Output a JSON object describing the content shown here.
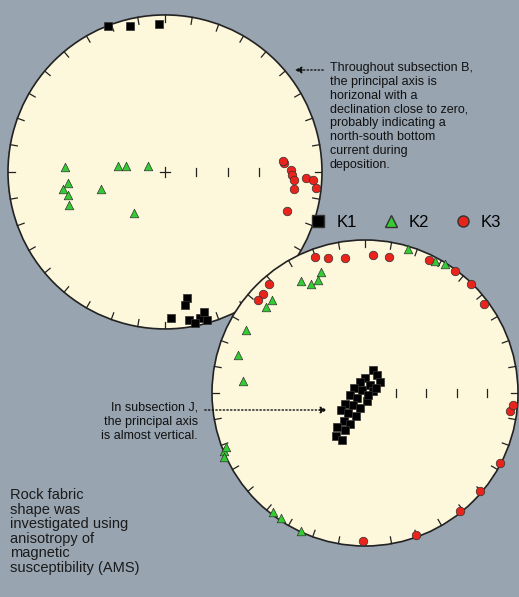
{
  "chart_data": [
    {
      "type": "scatter",
      "annotation": "Throughout subsection B,\nthe principal axis is\nhorizonal with a\ndeclination close to zero,\nprobably indicating a\nnorth-south bottom\ncurrent during\ndeposition.",
      "xlim": [
        -1,
        1
      ],
      "ylim": [
        -1,
        1
      ],
      "tick_labels": false,
      "legend": "center right",
      "series": [
        {
          "name": "K1",
          "color": "#000000",
          "marker": "square",
          "x": [
            -0.36,
            -0.22,
            -0.04,
            0.14,
            0.04,
            0.15,
            0.22,
            0.25,
            0.27,
            0.19,
            0.13
          ],
          "y": [
            0.93,
            0.93,
            0.94,
            -0.8,
            -0.93,
            -0.94,
            -0.93,
            -0.89,
            -0.94,
            -0.96,
            -0.85
          ]
        },
        {
          "name": "K2",
          "color": "#33cc33",
          "marker": "triangle",
          "x": [
            -0.64,
            -0.62,
            -0.65,
            -0.62,
            -0.61,
            -0.41,
            -0.3,
            -0.25,
            -0.11,
            -0.2
          ],
          "y": [
            0.03,
            -0.07,
            -0.11,
            -0.15,
            -0.21,
            -0.11,
            0.04,
            0.04,
            0.04,
            -0.26
          ]
        },
        {
          "name": "K3",
          "color": "#e8241c",
          "marker": "circle",
          "x": [
            0.76,
            0.8,
            0.81,
            0.82,
            0.82,
            0.9,
            0.94,
            0.96,
            0.78,
            0.75
          ],
          "y": [
            0.06,
            0.01,
            -0.02,
            -0.05,
            -0.11,
            -0.04,
            -0.05,
            -0.1,
            -0.25,
            0.07
          ]
        }
      ]
    },
    {
      "type": "scatter",
      "annotation": "In subsection J,\nthe principal axis\nis almost vertical.",
      "xlim": [
        -1,
        1
      ],
      "ylim": [
        -1,
        1
      ],
      "tick_labels": false,
      "series": [
        {
          "name": "K1",
          "color": "#000000",
          "marker": "square",
          "x": [
            0.05,
            0.08,
            0.0,
            -0.03,
            0.03,
            0.1,
            -0.07,
            -0.02,
            0.05,
            -0.1,
            -0.05,
            0.01,
            -0.13,
            -0.08,
            -0.03,
            -0.16,
            -0.11,
            -0.06,
            -0.14,
            -0.1,
            -0.18,
            -0.13,
            -0.19,
            -0.15,
            0.02,
            0.07
          ],
          "y": [
            0.15,
            0.12,
            0.1,
            0.07,
            0.05,
            0.07,
            0.03,
            0.02,
            0.01,
            -0.01,
            -0.03,
            -0.05,
            -0.07,
            -0.08,
            -0.1,
            -0.11,
            -0.13,
            -0.15,
            -0.18,
            -0.2,
            -0.22,
            -0.24,
            -0.28,
            -0.31,
            -0.01,
            0.03
          ]
        },
        {
          "name": "K2",
          "color": "#33cc33",
          "marker": "triangle",
          "x": [
            0.28,
            0.52,
            0.46,
            -0.29,
            -0.31,
            -0.35,
            -0.42,
            -0.61,
            -0.65,
            -0.78,
            -0.83,
            -0.8,
            -0.92,
            -0.92,
            -0.91,
            -0.6,
            -0.55,
            -0.42
          ],
          "y": [
            0.94,
            0.84,
            0.86,
            0.79,
            0.74,
            0.71,
            0.73,
            0.61,
            0.56,
            0.41,
            0.25,
            0.08,
            -0.38,
            -0.42,
            -0.35,
            -0.78,
            -0.82,
            -0.9
          ]
        },
        {
          "name": "K3",
          "color": "#e8241c",
          "marker": "circle",
          "x": [
            -0.33,
            -0.24,
            -0.13,
            0.05,
            0.16,
            0.42,
            0.59,
            0.69,
            0.78,
            -0.67,
            -0.63,
            -0.7,
            0.95,
            0.97,
            0.88,
            0.75,
            0.62,
            0.33,
            -0.01
          ],
          "y": [
            0.89,
            0.88,
            0.88,
            0.9,
            0.89,
            0.87,
            0.8,
            0.71,
            0.58,
            0.65,
            0.71,
            0.61,
            -0.12,
            -0.08,
            -0.46,
            -0.64,
            -0.77,
            -0.93,
            -0.97
          ]
        }
      ]
    }
  ],
  "caption": "Rock fabric\nshape was\ninvestigated using\nanisotropy of\nmagnetic\nsusceptibility (AMS)"
}
